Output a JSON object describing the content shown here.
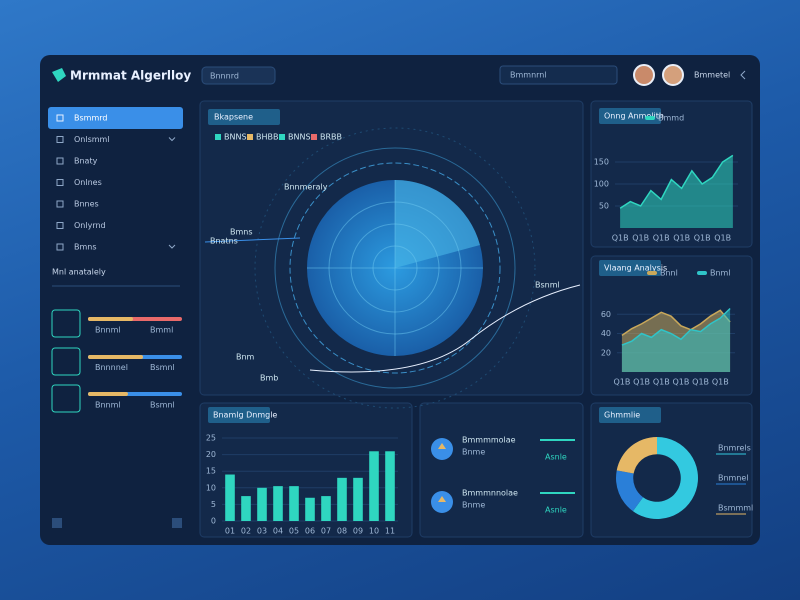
{
  "header": {
    "brand": "Mrmmat Algerlloy",
    "search": "Bnnnrd",
    "search_right": "Bmmnrnl",
    "user": "Bmmetel"
  },
  "sidebar": {
    "items": [
      "Bsmmrd",
      "Onlsmml",
      "Bnaty",
      "Onlnes",
      "Bnnes",
      "Onlyrnd",
      "Bmns"
    ],
    "section": "Mnl anatalely",
    "widgets": [
      {
        "label": "Bnnml",
        "value": "Bmml"
      },
      {
        "label": "Bnnnnel",
        "value": "Bsmnl"
      },
      {
        "label": "Bnnml",
        "value": "Bsmnl"
      }
    ]
  },
  "radar_panel": {
    "title": "Bkapsene",
    "legend": [
      "BNNS",
      "BHBB",
      "BNNS",
      "BRBB"
    ],
    "labels": [
      "Bnnmeraly",
      "Bmns",
      "Bnatns",
      "Bnm",
      "Bmb",
      "Bsnml"
    ]
  },
  "stats": [
    {
      "label": "Bmmmmolae",
      "value": "Bnme",
      "delta": "Asnle"
    },
    {
      "label": "Bmmmnnolae",
      "value": "Bnme",
      "delta": "Asnle"
    }
  ],
  "chart_data": [
    {
      "type": "area",
      "title": "Onng Anmelith",
      "categories": [
        "Q1B",
        null,
        "Q1B",
        null,
        "Q1B",
        null,
        "Q1B",
        null,
        "Q1B",
        null,
        "Q1B",
        null
      ],
      "series": [
        {
          "name": "Bmmd",
          "color": "#2fd6c0",
          "values": [
            45,
            60,
            50,
            85,
            65,
            110,
            90,
            130,
            100,
            115,
            150,
            165
          ]
        }
      ],
      "ylim": [
        0,
        200
      ],
      "yticks": [
        50,
        100,
        150
      ]
    },
    {
      "type": "area",
      "title": "Vlaang Analysis",
      "categories": [
        "Q1B",
        null,
        "Q1B",
        null,
        "Q1B",
        null,
        "Q1B",
        null,
        "Q1B",
        null,
        "Q1B",
        null
      ],
      "series": [
        {
          "name": "Bnnl",
          "color": "#c9a85a",
          "values": [
            38,
            45,
            50,
            56,
            62,
            58,
            48,
            44,
            50,
            58,
            64,
            52
          ]
        },
        {
          "name": "Bnml",
          "color": "#2fc4c8",
          "values": [
            28,
            32,
            40,
            36,
            44,
            40,
            34,
            44,
            42,
            50,
            56,
            66
          ]
        }
      ],
      "ylim": [
        0,
        80
      ],
      "yticks": [
        20,
        40,
        60
      ]
    },
    {
      "type": "bar",
      "title": "Bnamlg Dnmgle",
      "categories": [
        "01",
        "02",
        "03",
        "04",
        "05",
        "06",
        "07",
        "08",
        "09",
        "10",
        "11"
      ],
      "values": [
        14,
        7.5,
        10,
        10.5,
        10.5,
        7,
        7.5,
        13,
        13,
        21,
        21
      ],
      "color": "#2fd6c0",
      "ylim": [
        0,
        25
      ],
      "yticks": [
        0,
        5,
        10,
        15,
        20,
        25
      ]
    },
    {
      "type": "pie",
      "title": "Ghmmlie",
      "categories": [
        "Bnmrels",
        "Bnmnel",
        "Bsmmml"
      ],
      "values": [
        60,
        18,
        22
      ],
      "colors": [
        "#33c9e0",
        "#2a7fd8",
        "#e6b866"
      ]
    }
  ]
}
